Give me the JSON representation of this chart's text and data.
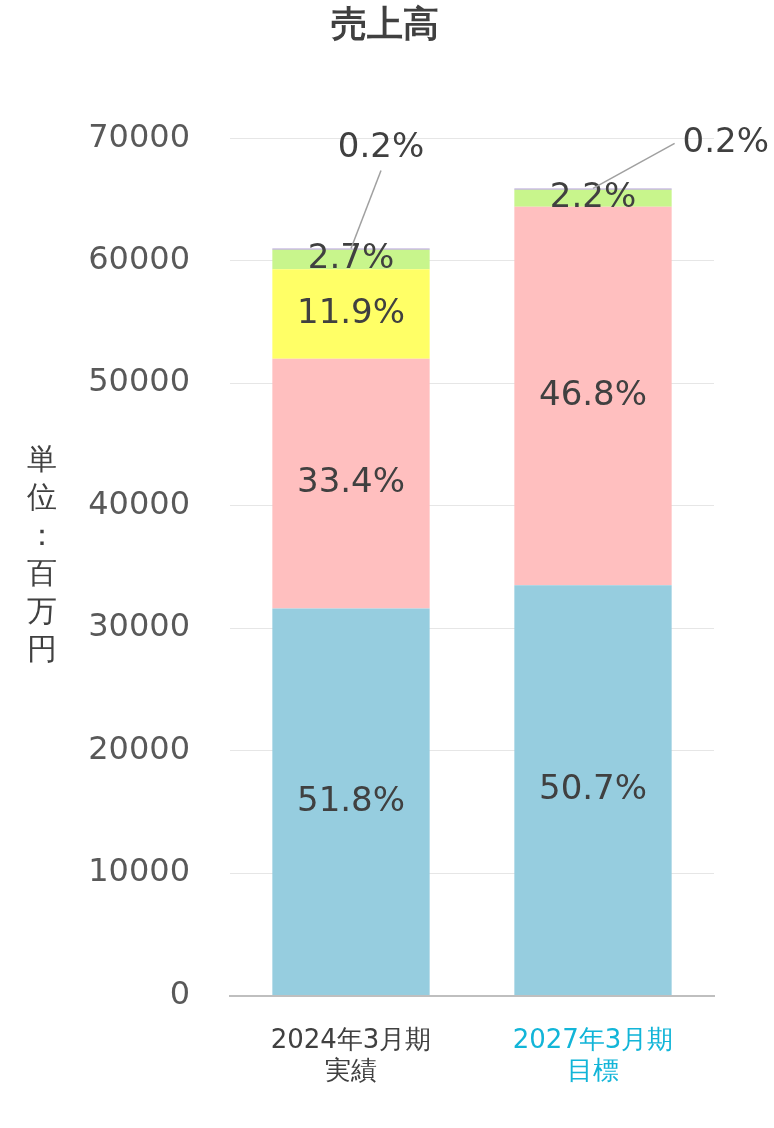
{
  "chart_data": {
    "type": "bar",
    "title": "売上高",
    "ylabel": "単位：百万円",
    "categories": [
      "2024年3月期実績",
      "2027年3月期目標"
    ],
    "stacked": true,
    "ylim": [
      0,
      70000
    ],
    "yticks": [
      0,
      10000,
      20000,
      30000,
      40000,
      50000,
      60000,
      70000
    ],
    "grid": "y",
    "legend": false,
    "series": [
      {
        "color": "#96cddf",
        "values": [
          31600,
          33500
        ]
      },
      {
        "color": "#ffbfbf",
        "values": [
          20400,
          30900
        ]
      },
      {
        "color": "#ffff66",
        "values": [
          7300,
          null
        ]
      },
      {
        "color": "#c8f58c",
        "values": [
          1600,
          1400
        ]
      },
      {
        "color": "#b4a0d8",
        "values": [
          100,
          100
        ]
      }
    ],
    "annotations": [
      "51.8%",
      "33.4%",
      "11.9%",
      "2.7%",
      {
        "text": "0.2%",
        "x": "2024年3月期実績",
        "y": 61000
      },
      "50.7%",
      "46.8%",
      "2.2%",
      {
        "text": "0.2%",
        "x": "2027年3月期目標",
        "y": 65900
      }
    ]
  }
}
